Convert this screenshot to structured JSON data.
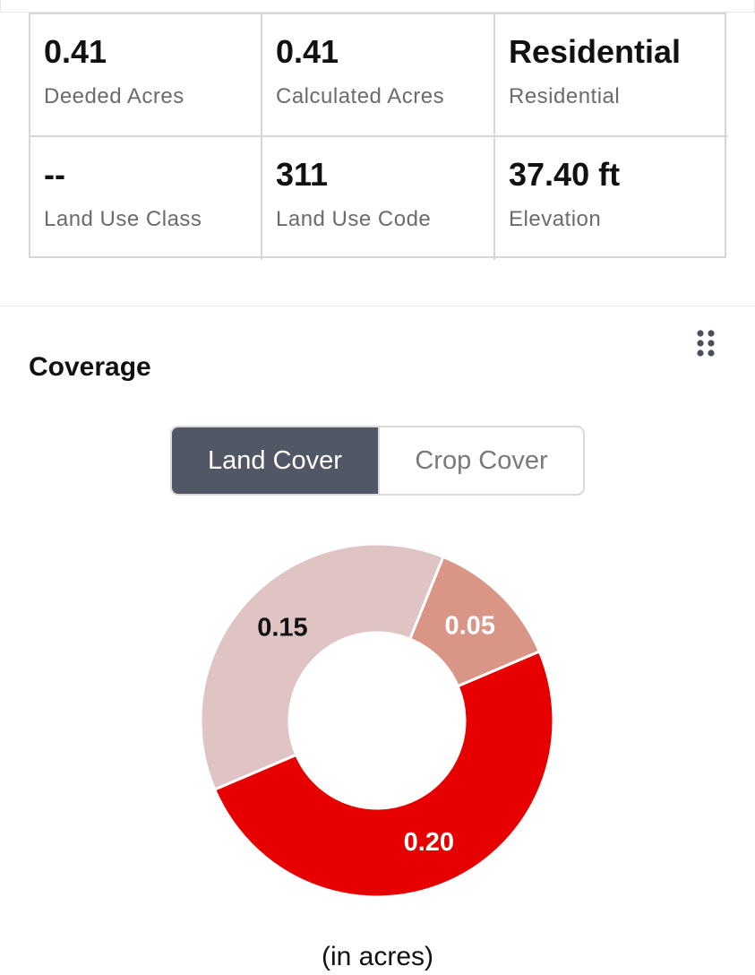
{
  "stats": [
    {
      "value": "0.41",
      "label": "Deeded Acres"
    },
    {
      "value": "0.41",
      "label": "Calculated Acres"
    },
    {
      "value": "Residential",
      "label": "Residential"
    },
    {
      "value": "--",
      "label": "Land Use Class"
    },
    {
      "value": "311",
      "label": "Land Use Code"
    },
    {
      "value": "37.40 ft",
      "label": "Elevation"
    }
  ],
  "coverage": {
    "title": "Coverage",
    "menu_icon": "grid-dots-icon",
    "tabs": [
      {
        "label": "Land Cover",
        "active": true
      },
      {
        "label": "Crop Cover",
        "active": false
      }
    ],
    "units_note": "(in acres)"
  },
  "chart_data": {
    "type": "pie",
    "donut": true,
    "start_angle_deg": 93,
    "slices": [
      {
        "label": "0.05",
        "value": 0.05,
        "color": "#d99585",
        "label_color": "#ffffff"
      },
      {
        "label": "0.20",
        "value": 0.2,
        "color": "#e60000",
        "label_color": "#ffffff"
      },
      {
        "label": "0.15",
        "value": 0.15,
        "color": "#e0c4c4",
        "label_color": "#111111"
      }
    ],
    "unit": "acres"
  }
}
